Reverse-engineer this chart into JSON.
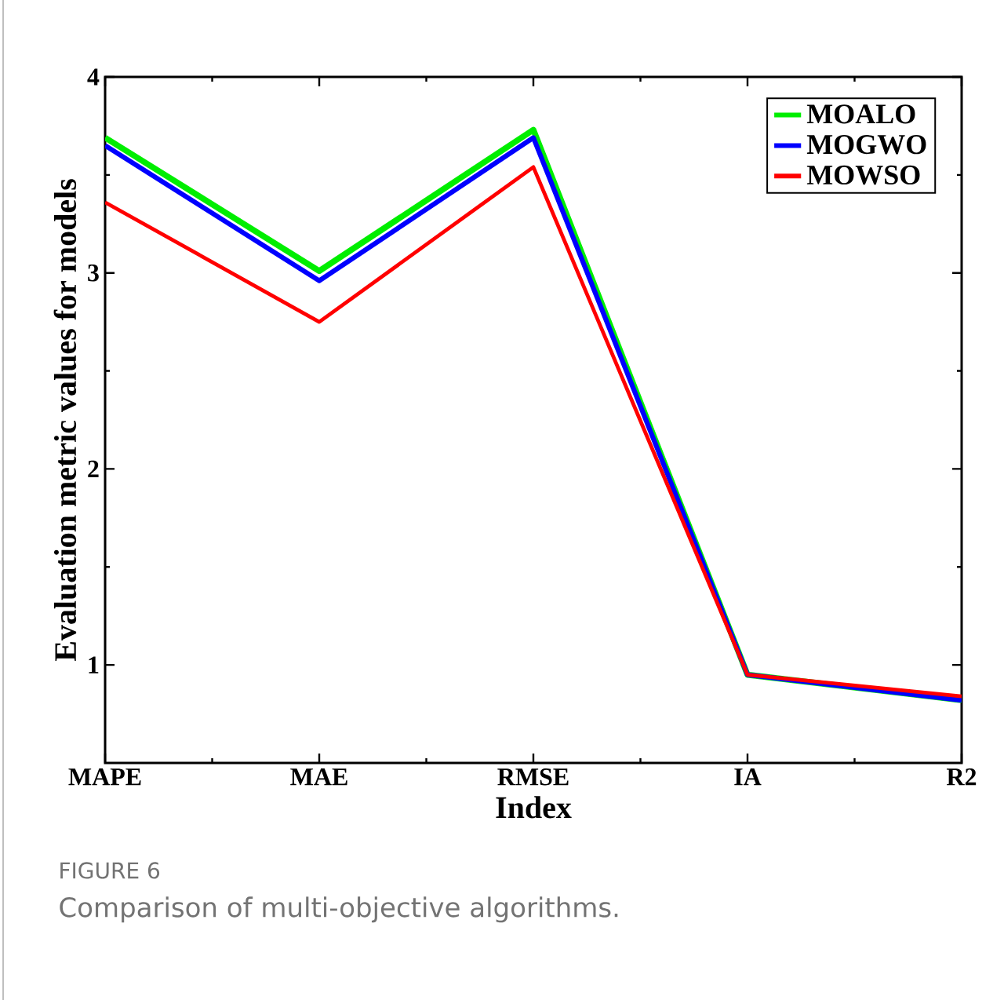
{
  "chart_data": {
    "type": "line",
    "xlabel": "Index",
    "ylabel": "Evaluation metric values for models",
    "categories": [
      "MAPE",
      "MAE",
      "RMSE",
      "IA",
      "R2"
    ],
    "series": [
      {
        "name": "MOALO",
        "color": "#00ee00",
        "values": [
          3.69,
          3.01,
          3.73,
          0.95,
          0.82
        ]
      },
      {
        "name": "MOGWO",
        "color": "#0000ff",
        "values": [
          3.65,
          2.96,
          3.69,
          0.95,
          0.82
        ]
      },
      {
        "name": "MOWSO",
        "color": "#ff0000",
        "values": [
          3.36,
          2.75,
          3.54,
          0.95,
          0.84
        ]
      }
    ],
    "ylim": [
      0.5,
      4
    ],
    "yticks": [
      1,
      2,
      3,
      4
    ],
    "grid": false,
    "legend": "top right",
    "annotations": [
      "FIGURE 6",
      "Comparison of multi-objective algorithms."
    ]
  }
}
